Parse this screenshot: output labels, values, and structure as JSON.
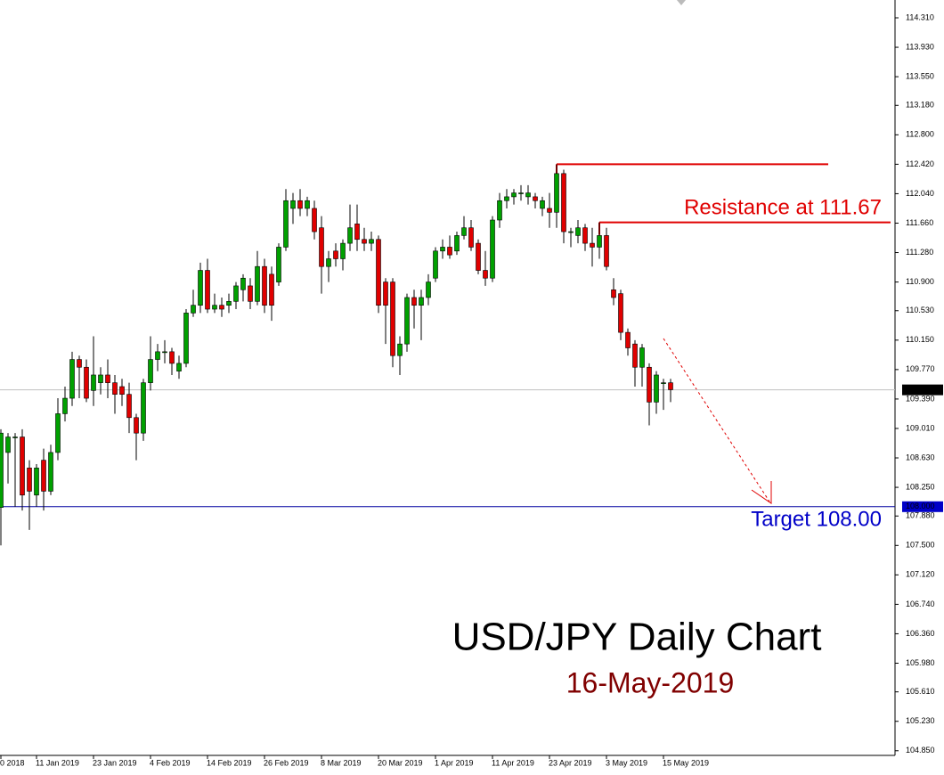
{
  "chart_data": {
    "type": "candlestick",
    "title": "USD/JPY Daily Chart",
    "subtitle": "16-May-2019",
    "annotations": [
      {
        "text": "Resistance at 111.67",
        "color": "#e00000"
      },
      {
        "text": "Target 108.00",
        "color": "#0000c8"
      }
    ],
    "up_color": "#00a000",
    "down_color": "#e00000",
    "categories": [
      "0 2018",
      null,
      null,
      null,
      null,
      "11 Jan 2019",
      null,
      null,
      null,
      null,
      null,
      null,
      null,
      "23 Jan 2019",
      null,
      null,
      null,
      null,
      null,
      null,
      null,
      "4 Feb 2019",
      null,
      null,
      null,
      null,
      null,
      null,
      null,
      "14 Feb 2019",
      null,
      null,
      null,
      null,
      null,
      null,
      null,
      "26 Feb 2019",
      null,
      null,
      null,
      null,
      null,
      null,
      null,
      "8 Mar 2019",
      null,
      null,
      null,
      null,
      null,
      null,
      null,
      "20 Mar 2019",
      null,
      null,
      null,
      null,
      null,
      null,
      null,
      "1 Apr 2019",
      null,
      null,
      null,
      null,
      null,
      null,
      null,
      "11 Apr 2019",
      null,
      null,
      null,
      null,
      null,
      null,
      null,
      "23 Apr 2019",
      null,
      null,
      null,
      null,
      null,
      null,
      null,
      "3 May 2019",
      null,
      null,
      null,
      null,
      null,
      null,
      null,
      "15 May 2019",
      null
    ],
    "open": [
      107.99,
      108.7,
      108.9,
      108.9,
      108.5,
      108.15,
      108.6,
      108.2,
      108.7,
      109.2,
      109.4,
      109.9,
      109.8,
      109.5,
      109.6,
      109.7,
      109.6,
      109.55,
      109.45,
      109.15,
      108.95,
      109.6,
      109.9,
      110.0,
      110.0,
      109.75,
      109.85,
      110.5,
      110.6,
      111.05,
      110.55,
      110.6,
      110.6,
      110.65,
      110.8,
      110.85,
      110.65,
      111.1,
      111.0,
      110.9,
      111.35,
      111.85,
      111.95,
      111.85,
      111.85,
      111.6,
      111.1,
      111.3,
      111.2,
      111.4,
      111.65,
      111.45,
      111.4,
      111.45,
      110.9,
      110.9,
      109.95,
      110.1,
      110.7,
      110.6,
      110.7,
      110.95,
      111.3,
      111.35,
      111.3,
      111.5,
      111.6,
      111.4,
      111.05,
      110.95,
      111.7,
      111.95,
      112.0,
      112.05,
      112.0,
      112.0,
      111.85,
      111.85,
      111.8,
      112.3,
      111.55,
      111.5,
      111.6,
      111.4,
      111.35,
      111.5,
      110.8,
      110.75,
      110.25,
      110.1,
      109.8,
      109.8,
      109.35,
      109.6,
      109.6
    ],
    "high": [
      109.0,
      108.95,
      108.95,
      109.0,
      108.6,
      108.55,
      108.75,
      108.8,
      109.4,
      109.55,
      110.0,
      109.95,
      109.9,
      110.2,
      109.8,
      109.9,
      109.7,
      109.65,
      109.6,
      109.2,
      109.65,
      110.2,
      110.1,
      110.15,
      110.05,
      109.95,
      110.55,
      110.8,
      111.15,
      111.2,
      110.75,
      110.7,
      110.75,
      110.9,
      111.0,
      110.95,
      111.3,
      111.2,
      111.1,
      111.4,
      112.1,
      112.05,
      112.1,
      112.0,
      111.95,
      111.75,
      111.3,
      111.4,
      111.45,
      111.9,
      111.9,
      111.6,
      111.55,
      111.5,
      110.95,
      110.95,
      110.2,
      110.75,
      110.8,
      110.8,
      111.0,
      111.35,
      111.45,
      111.5,
      111.55,
      111.75,
      111.7,
      111.45,
      111.3,
      111.75,
      112.05,
      112.1,
      112.1,
      112.15,
      112.15,
      112.05,
      112.0,
      112.05,
      112.42,
      112.35,
      111.6,
      111.7,
      111.65,
      111.6,
      111.67,
      111.6,
      110.95,
      110.8,
      110.3,
      110.15,
      110.1,
      109.85,
      109.75,
      109.65,
      109.65
    ],
    "low": [
      107.5,
      108.3,
      108.0,
      107.95,
      107.7,
      108.0,
      107.95,
      108.15,
      108.6,
      109.1,
      109.3,
      109.4,
      109.35,
      109.3,
      109.45,
      109.4,
      109.2,
      109.3,
      108.95,
      108.6,
      108.85,
      109.5,
      109.75,
      109.85,
      109.7,
      109.65,
      109.8,
      110.45,
      110.5,
      110.5,
      110.5,
      110.45,
      110.5,
      110.55,
      110.65,
      110.55,
      110.6,
      110.5,
      110.4,
      110.85,
      111.3,
      111.65,
      111.75,
      111.75,
      111.45,
      110.75,
      110.9,
      111.1,
      111.05,
      111.3,
      111.3,
      111.3,
      111.3,
      110.5,
      110.1,
      109.8,
      109.7,
      110.0,
      110.3,
      110.15,
      110.6,
      110.9,
      111.2,
      111.2,
      111.25,
      111.45,
      111.3,
      111.0,
      110.85,
      110.9,
      111.6,
      111.85,
      111.9,
      111.95,
      111.9,
      111.85,
      111.75,
      111.6,
      111.6,
      111.4,
      111.35,
      111.4,
      111.3,
      111.1,
      111.2,
      111.05,
      110.6,
      110.15,
      109.95,
      109.55,
      109.55,
      109.05,
      109.2,
      109.25,
      109.35
    ],
    "close": [
      108.95,
      108.9,
      108.9,
      108.15,
      108.2,
      108.5,
      108.2,
      108.7,
      109.2,
      109.4,
      109.9,
      109.8,
      109.4,
      109.7,
      109.7,
      109.6,
      109.45,
      109.45,
      109.15,
      108.95,
      109.6,
      109.9,
      110.0,
      110.0,
      109.85,
      109.85,
      110.5,
      110.6,
      111.05,
      110.55,
      110.6,
      110.55,
      110.65,
      110.85,
      110.95,
      110.65,
      111.1,
      110.6,
      110.6,
      111.35,
      111.95,
      111.95,
      111.85,
      111.95,
      111.55,
      111.1,
      111.2,
      111.2,
      111.4,
      111.6,
      111.45,
      111.4,
      111.45,
      110.6,
      110.6,
      109.95,
      110.1,
      110.7,
      110.6,
      110.7,
      110.9,
      111.3,
      111.35,
      111.25,
      111.5,
      111.6,
      111.35,
      111.05,
      110.95,
      111.7,
      111.95,
      112.0,
      112.05,
      112.05,
      112.05,
      111.95,
      111.95,
      111.8,
      112.3,
      111.55,
      111.55,
      111.6,
      111.4,
      111.35,
      111.5,
      111.1,
      110.7,
      110.25,
      110.05,
      109.8,
      110.05,
      109.35,
      109.7,
      109.6,
      109.51
    ],
    "ylim": [
      104.79,
      114.54
    ],
    "yticks": [
      {
        "value": 104.85,
        "label": "104.850"
      },
      {
        "value": 105.23,
        "label": "105.230"
      },
      {
        "value": 105.61,
        "label": "105.610"
      },
      {
        "value": 105.98,
        "label": "105.980"
      },
      {
        "value": 106.36,
        "label": "106.360"
      },
      {
        "value": 106.74,
        "label": "106.740"
      },
      {
        "value": 107.12,
        "label": "107.120"
      },
      {
        "value": 107.5,
        "label": "107.500"
      },
      {
        "value": 107.88,
        "label": "107.880"
      },
      {
        "value": 108.25,
        "label": "108.250"
      },
      {
        "value": 108.63,
        "label": "108.630"
      },
      {
        "value": 109.01,
        "label": "109.010"
      },
      {
        "value": 109.39,
        "label": "109.390"
      },
      {
        "value": 109.77,
        "label": "109.770"
      },
      {
        "value": 110.15,
        "label": "110.150"
      },
      {
        "value": 110.53,
        "label": "110.530"
      },
      {
        "value": 110.9,
        "label": "110.900"
      },
      {
        "value": 111.28,
        "label": "111.280"
      },
      {
        "value": 111.66,
        "label": "111.660"
      },
      {
        "value": 112.04,
        "label": "112.040"
      },
      {
        "value": 112.42,
        "label": "112.420"
      },
      {
        "value": 112.8,
        "label": "112.800"
      },
      {
        "value": 113.18,
        "label": "113.180"
      },
      {
        "value": 113.55,
        "label": "113.550"
      },
      {
        "value": 113.93,
        "label": "113.930"
      },
      {
        "value": 114.31,
        "label": "114.310"
      }
    ],
    "price_lines": [
      {
        "value": 109.508,
        "label": "109.508",
        "color": "#c0c0c0",
        "box_color": "#000000"
      },
      {
        "value": 108.0,
        "label": "108.000",
        "color": "#0000a0",
        "box_color": "#0000c8"
      }
    ],
    "resistance_lines": [
      112.42,
      111.67
    ],
    "resistance_color": "#e00000"
  }
}
